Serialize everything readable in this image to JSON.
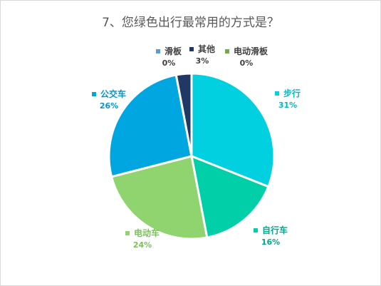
{
  "title": "7、您绿色出行最常用的方式是？",
  "chart_data": {
    "type": "pie",
    "title": "7、您绿色出行最常用的方式是？",
    "start_angle_deg": 0,
    "direction": "clockwise",
    "categories": [
      "步行",
      "自行车",
      "电动车",
      "公交车",
      "滑板",
      "其他",
      "电动滑板"
    ],
    "values": [
      31,
      16,
      24,
      26,
      0,
      3,
      0
    ],
    "value_labels": [
      "31%",
      "16%",
      "24%",
      "26%",
      "0%",
      "3%",
      "0%"
    ],
    "colors": [
      "#00d0e0",
      "#00cfa8",
      "#8fd46f",
      "#00a6e0",
      "#5b9bd5",
      "#1f3864",
      "#70ad47"
    ],
    "label_colors": [
      "#00b8c8",
      "#00a890",
      "#7ac25a",
      "#0096d0",
      "#404040",
      "#404040",
      "#404040"
    ]
  }
}
